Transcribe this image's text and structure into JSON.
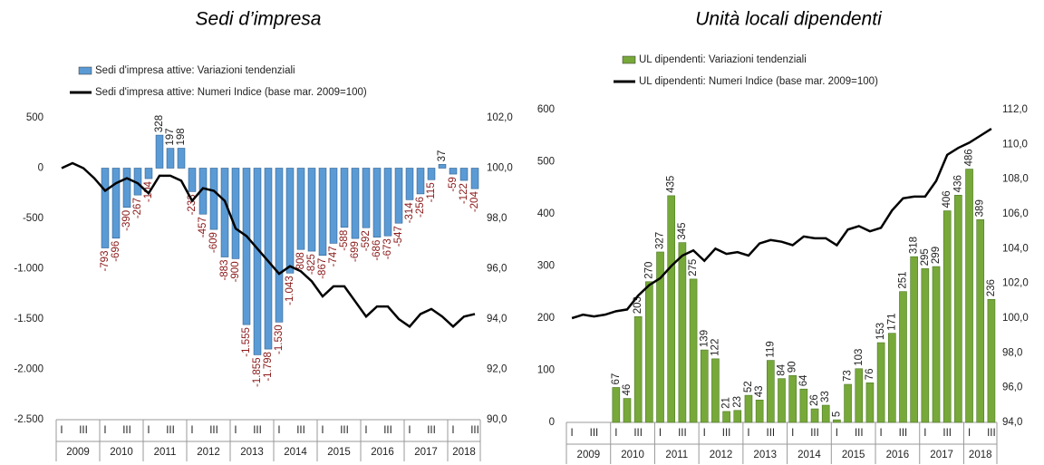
{
  "chart_data": [
    {
      "type": "bar",
      "title": "Sedi d’impresa",
      "categories": [
        "I",
        null,
        "III",
        null,
        "I",
        null,
        "III",
        null,
        "I",
        null,
        "III",
        null,
        "I",
        null,
        "III",
        null,
        "I",
        null,
        "III",
        null,
        "I",
        null,
        "III",
        null,
        "I",
        null,
        "III",
        null,
        "I",
        null,
        "III",
        null,
        "I",
        null,
        "III",
        null,
        "I",
        null,
        "III"
      ],
      "years": [
        "2009",
        "2010",
        "2011",
        "2012",
        "2013",
        "2014",
        "2015",
        "2016",
        "2017",
        "2018"
      ],
      "series": [
        {
          "name": "Sedi d'impresa attive:  Variazioni tendenziali",
          "type": "bar",
          "color": "#5b9bd5",
          "values": [
            null,
            null,
            null,
            null,
            -793,
            -696,
            -390,
            -267,
            -104,
            328,
            197,
            198,
            -233,
            -457,
            -609,
            -883,
            -900,
            -1555,
            -1855,
            -1798,
            -1530,
            -1043,
            -808,
            -825,
            -867,
            -747,
            -588,
            -699,
            -592,
            -686,
            -673,
            -547,
            -314,
            -256,
            -115,
            37,
            -59,
            -122,
            -204
          ],
          "value_labels": [
            null,
            null,
            null,
            null,
            "-793",
            "-696",
            "-390",
            "-267",
            "-104",
            "328",
            "197",
            "198",
            "-233",
            "-457",
            "-609",
            "-883",
            "-900",
            "-1.555",
            "-1.855",
            "-1.798",
            "-1.530",
            "-1.043",
            "-808",
            "-825",
            "-867",
            "-747",
            "-588",
            "-699",
            "-592",
            "-686",
            "-673",
            "-547",
            "-314",
            "-256",
            "-115",
            "37",
            "-59",
            "-122",
            "-204"
          ]
        },
        {
          "name": "Sedi d'impresa attive:  Numeri Indice (base mar. 2009=100)",
          "type": "line",
          "axis": "y2",
          "color": "#000000",
          "values": [
            100.0,
            100.2,
            100.0,
            99.6,
            99.1,
            99.4,
            99.6,
            99.4,
            99.0,
            99.7,
            99.7,
            99.5,
            98.7,
            99.2,
            99.1,
            98.7,
            97.6,
            97.3,
            96.8,
            96.3,
            95.8,
            96.1,
            95.9,
            95.5,
            94.9,
            95.3,
            95.3,
            94.7,
            94.1,
            94.5,
            94.5,
            94.0,
            93.7,
            94.2,
            94.4,
            94.1,
            93.7,
            94.1,
            94.2
          ]
        }
      ],
      "ylim": [
        -2500,
        500
      ],
      "yticks": [
        500,
        0,
        -500,
        {
          "value": -1000,
          "label": "-1.000"
        },
        {
          "value": -1500,
          "label": "-1.500"
        },
        {
          "value": -2000,
          "label": "-2.000"
        },
        {
          "value": -2500,
          "label": "-2.500"
        }
      ],
      "y2lim": [
        90,
        102
      ],
      "y2ticks": [
        {
          "value": 102,
          "label": "102,0"
        },
        {
          "value": 100,
          "label": "100,0"
        },
        {
          "value": 98,
          "label": "98,0"
        },
        {
          "value": 96,
          "label": "96,0"
        },
        {
          "value": 94,
          "label": "94,0"
        },
        {
          "value": 92,
          "label": "92,0"
        },
        {
          "value": 90,
          "label": "90,0"
        }
      ]
    },
    {
      "type": "bar",
      "title": "Unità locali dipendenti",
      "categories": [
        "I",
        null,
        "III",
        null,
        "I",
        null,
        "III",
        null,
        "I",
        null,
        "III",
        null,
        "I",
        null,
        "III",
        null,
        "I",
        null,
        "III",
        null,
        "I",
        null,
        "III",
        null,
        "I",
        null,
        "III",
        null,
        "I",
        null,
        "III",
        null,
        "I",
        null,
        "III",
        null,
        "I",
        null,
        "III"
      ],
      "years": [
        "2009",
        "2010",
        "2011",
        "2012",
        "2013",
        "2014",
        "2015",
        "2016",
        "2017",
        "2018"
      ],
      "series": [
        {
          "name": "UL dipendenti: Variazioni tendenziali",
          "type": "bar",
          "color": "#77a83a",
          "values": [
            null,
            null,
            null,
            null,
            67,
            46,
            203,
            270,
            327,
            435,
            345,
            275,
            139,
            122,
            21,
            23,
            52,
            43,
            119,
            84,
            90,
            64,
            26,
            33,
            5,
            73,
            103,
            76,
            153,
            171,
            251,
            318,
            295,
            299,
            406,
            436,
            486,
            389,
            236
          ]
        },
        {
          "name": "UL dipendenti: Numeri Indice (base mar. 2009=100)",
          "type": "line",
          "axis": "y2",
          "color": "#000000",
          "values": [
            100.0,
            100.2,
            100.1,
            100.2,
            100.4,
            100.5,
            101.3,
            101.9,
            102.3,
            103.0,
            103.6,
            103.9,
            103.3,
            104.0,
            103.7,
            103.8,
            103.6,
            104.3,
            104.5,
            104.4,
            104.2,
            104.7,
            104.6,
            104.6,
            104.2,
            105.1,
            105.3,
            105.0,
            105.2,
            106.2,
            106.9,
            107.0,
            107.0,
            107.9,
            109.4,
            109.8,
            110.1,
            110.5,
            110.9
          ]
        }
      ],
      "ylim": [
        0,
        600
      ],
      "yticks": [
        600,
        500,
        400,
        300,
        200,
        100,
        0
      ],
      "y2lim": [
        94,
        112
      ],
      "y2ticks": [
        {
          "value": 112,
          "label": "112,0"
        },
        {
          "value": 110,
          "label": "110,0"
        },
        {
          "value": 108,
          "label": "108,0"
        },
        {
          "value": 106,
          "label": "106,0"
        },
        {
          "value": 104,
          "label": "104,0"
        },
        {
          "value": 102,
          "label": "102,0"
        },
        {
          "value": 100,
          "label": "100,0"
        },
        {
          "value": 98,
          "label": "98,0"
        },
        {
          "value": 96,
          "label": "96,0"
        },
        {
          "value": 94,
          "label": "94,0"
        }
      ]
    }
  ]
}
